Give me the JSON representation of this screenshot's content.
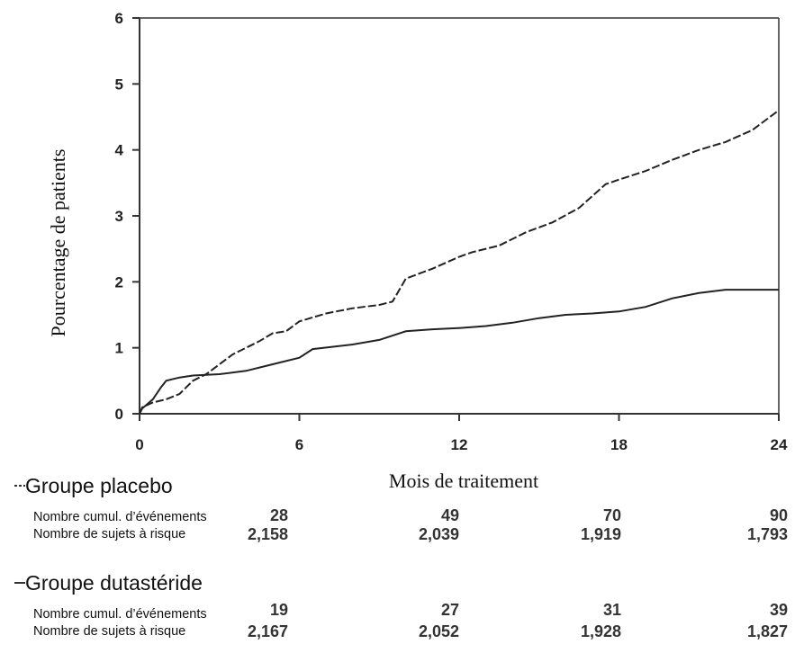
{
  "chart_data": {
    "type": "line",
    "xlabel": "Mois de traitement",
    "ylabel": "Pourcentage de patients",
    "xlim": [
      0,
      24
    ],
    "ylim": [
      0,
      6
    ],
    "xticks": [
      "0",
      "6",
      "12",
      "18",
      "24"
    ],
    "yticks": [
      "0",
      "1",
      "2",
      "3",
      "4",
      "5",
      "6"
    ],
    "grid": false,
    "series": [
      {
        "name": "Groupe placebo",
        "style": "dashed",
        "points": [
          [
            0,
            0
          ],
          [
            0.1,
            0.1
          ],
          [
            0.5,
            0.17
          ],
          [
            1,
            0.22
          ],
          [
            1.5,
            0.3
          ],
          [
            2,
            0.5
          ],
          [
            2.5,
            0.6
          ],
          [
            3,
            0.75
          ],
          [
            3.5,
            0.9
          ],
          [
            4,
            1.0
          ],
          [
            4.5,
            1.1
          ],
          [
            5,
            1.22
          ],
          [
            5.5,
            1.25
          ],
          [
            6,
            1.4
          ],
          [
            7,
            1.52
          ],
          [
            8,
            1.6
          ],
          [
            9,
            1.65
          ],
          [
            9.5,
            1.7
          ],
          [
            10,
            2.05
          ],
          [
            11,
            2.2
          ],
          [
            12,
            2.38
          ],
          [
            12.5,
            2.45
          ],
          [
            13.5,
            2.55
          ],
          [
            14.5,
            2.75
          ],
          [
            15.5,
            2.9
          ],
          [
            16.5,
            3.12
          ],
          [
            17,
            3.3
          ],
          [
            17.5,
            3.48
          ],
          [
            18,
            3.55
          ],
          [
            19,
            3.68
          ],
          [
            20,
            3.85
          ],
          [
            21,
            4.0
          ],
          [
            22,
            4.12
          ],
          [
            23,
            4.3
          ],
          [
            24,
            4.6
          ]
        ]
      },
      {
        "name": "Groupe dutastéride",
        "style": "solid",
        "points": [
          [
            0,
            0
          ],
          [
            0.1,
            0.08
          ],
          [
            0.5,
            0.22
          ],
          [
            0.8,
            0.4
          ],
          [
            1,
            0.5
          ],
          [
            1.5,
            0.55
          ],
          [
            2,
            0.58
          ],
          [
            3,
            0.6
          ],
          [
            4,
            0.65
          ],
          [
            5,
            0.75
          ],
          [
            6,
            0.85
          ],
          [
            6.5,
            0.98
          ],
          [
            8,
            1.05
          ],
          [
            9,
            1.12
          ],
          [
            10,
            1.25
          ],
          [
            11,
            1.28
          ],
          [
            12,
            1.3
          ],
          [
            13,
            1.33
          ],
          [
            14,
            1.38
          ],
          [
            15,
            1.45
          ],
          [
            16,
            1.5
          ],
          [
            17,
            1.52
          ],
          [
            18,
            1.55
          ],
          [
            19,
            1.62
          ],
          [
            20,
            1.75
          ],
          [
            21,
            1.83
          ],
          [
            22,
            1.88
          ],
          [
            24,
            1.88
          ]
        ]
      }
    ]
  },
  "risk_table": {
    "timepoints": [
      "0",
      "6",
      "12",
      "18",
      "24"
    ],
    "groups": [
      {
        "name": "Groupe placebo",
        "rows": [
          {
            "label": "Nombre cumul. d’événements",
            "values": [
              "28",
              "49",
              "70",
              "90"
            ]
          },
          {
            "label": "Nombre de sujets à risque",
            "values": [
              "2,158",
              "2,039",
              "1,919",
              "1,793"
            ]
          }
        ]
      },
      {
        "name": "Groupe dutastéride",
        "rows": [
          {
            "label": "Nombre cumul. d’événements",
            "values": [
              "19",
              "27",
              "31",
              "39"
            ]
          },
          {
            "label": "Nombre de sujets à risque",
            "values": [
              "2,167",
              "2,052",
              "1,928",
              "1,827"
            ]
          }
        ]
      }
    ]
  }
}
